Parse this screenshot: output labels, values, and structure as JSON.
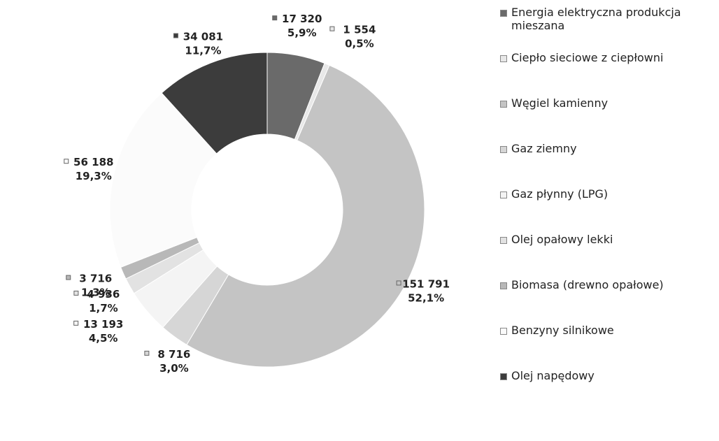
{
  "chart_data": {
    "type": "donut",
    "categories": [
      "Energia elektryczna produkcja mieszana",
      "Ciepło sieciowe z ciepłowni",
      "Węgiel kamienny",
      "Gaz ziemny",
      "Gaz płynny (LPG)",
      "Olej opałowy lekki",
      "Biomasa (drewno opałowe)",
      "Benzyny silnikowe",
      "Olej napędowy"
    ],
    "values": [
      17320,
      1554,
      151791,
      8716,
      13193,
      4936,
      3716,
      56188,
      34081
    ],
    "value_labels": [
      "17 320",
      "1 554",
      "151 791",
      "8 716",
      "13 193",
      "4 936",
      "3 716",
      "56 188",
      "34 081"
    ],
    "percents": [
      5.9,
      0.5,
      52.1,
      3.0,
      4.5,
      1.7,
      1.3,
      19.3,
      11.7
    ],
    "percent_labels": [
      "5,9%",
      "0,5%",
      "52,1%",
      "3,0%",
      "4,5%",
      "1,7%",
      "1,3%",
      "19,3%",
      "11,7%"
    ],
    "colors": [
      "#6a6a6a",
      "#e8e8e8",
      "#c4c4c4",
      "#d6d6d6",
      "#f4f4f4",
      "#e2e2e2",
      "#b8b8b8",
      "#fbfbfb",
      "#3c3c3c"
    ]
  }
}
